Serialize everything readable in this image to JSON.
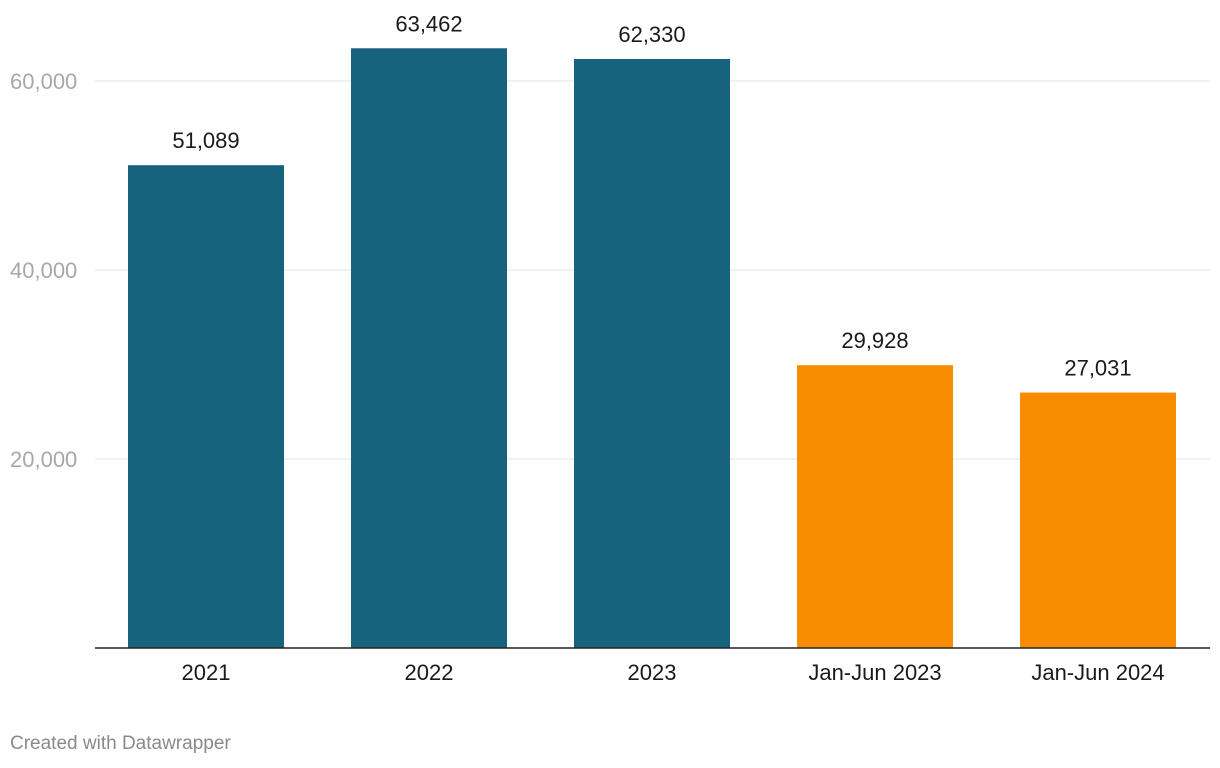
{
  "chart_data": {
    "type": "bar",
    "categories": [
      "2021",
      "2022",
      "2023",
      "Jan-Jun 2023",
      "Jan-Jun 2024"
    ],
    "values": [
      51089,
      63462,
      62330,
      29928,
      27031
    ],
    "value_labels": [
      "51,089",
      "63,462",
      "62,330",
      "29,928",
      "27,031"
    ],
    "bar_colors": [
      "#17627c",
      "#17627c",
      "#17627c",
      "#f78c00",
      "#f78c00"
    ],
    "y_ticks": [
      20000,
      40000,
      60000
    ],
    "y_tick_labels": [
      "20,000",
      "40,000",
      "60,000"
    ],
    "ylim": [
      0,
      60000
    ],
    "grid": true,
    "title": "",
    "xlabel": "",
    "ylabel": ""
  },
  "footer": {
    "credit": "Created with Datawrapper"
  }
}
